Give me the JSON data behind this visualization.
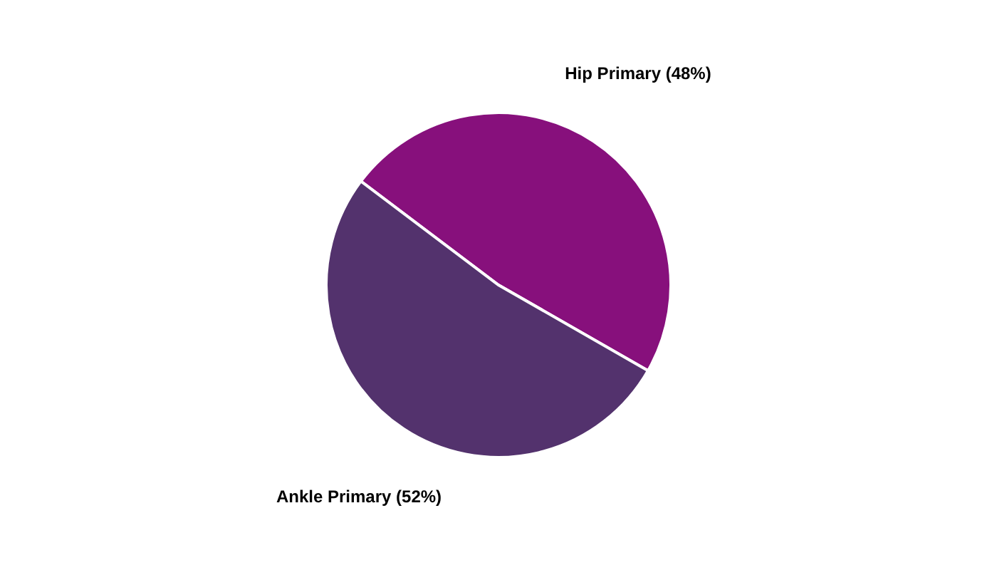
{
  "chart_data": {
    "type": "pie",
    "categories": [
      "Hip Primary",
      "Ankle Primary"
    ],
    "values": [
      48,
      52
    ],
    "colors": [
      "#87107c",
      "#53326d"
    ],
    "value_labels": [
      "(48%)",
      "(52%)"
    ]
  }
}
